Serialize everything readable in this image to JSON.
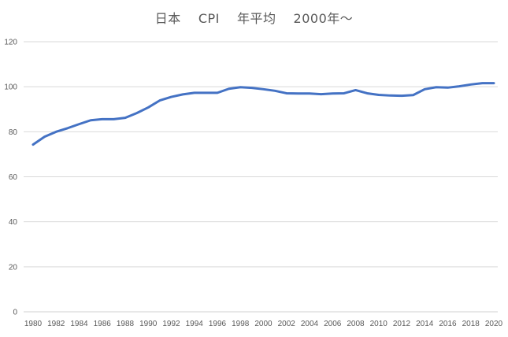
{
  "chart_data": {
    "type": "line",
    "title": "日本　 CPI　 年平均　 2000年～",
    "xlabel": "",
    "ylabel": "",
    "ylim": [
      0,
      120
    ],
    "yticks": [
      0,
      20,
      40,
      60,
      80,
      100,
      120
    ],
    "xlim": [
      1980,
      2020
    ],
    "xticks": [
      1980,
      1982,
      1984,
      1986,
      1988,
      1990,
      1992,
      1994,
      1996,
      1998,
      2000,
      2002,
      2004,
      2006,
      2008,
      2010,
      2012,
      2014,
      2016,
      2018,
      2020
    ],
    "grid": true,
    "legend": "none",
    "series_color": "#4472C4",
    "series": [
      {
        "x": [
          1980,
          1981,
          1982,
          1983,
          1984,
          1985,
          1986,
          1987,
          1988,
          1989,
          1990,
          1991,
          1992,
          1993,
          1994,
          1995,
          1996,
          1997,
          1998,
          1999,
          2000,
          2001,
          2002,
          2003,
          2004,
          2005,
          2006,
          2007,
          2008,
          2009,
          2010,
          2011,
          2012,
          2013,
          2014,
          2015,
          2016,
          2017,
          2018,
          2019,
          2020
        ],
        "values": [
          74.3,
          77.8,
          80.0,
          81.6,
          83.4,
          85.1,
          85.6,
          85.6,
          86.2,
          88.3,
          90.8,
          93.9,
          95.5,
          96.6,
          97.3,
          97.3,
          97.3,
          99.1,
          99.8,
          99.5,
          98.9,
          98.2,
          97.1,
          97.0,
          97.0,
          96.7,
          97.0,
          97.1,
          98.5,
          97.1,
          96.4,
          96.1,
          96.0,
          96.3,
          98.9,
          99.8,
          99.6,
          100.2,
          101.0,
          101.6,
          101.6
        ]
      }
    ]
  }
}
